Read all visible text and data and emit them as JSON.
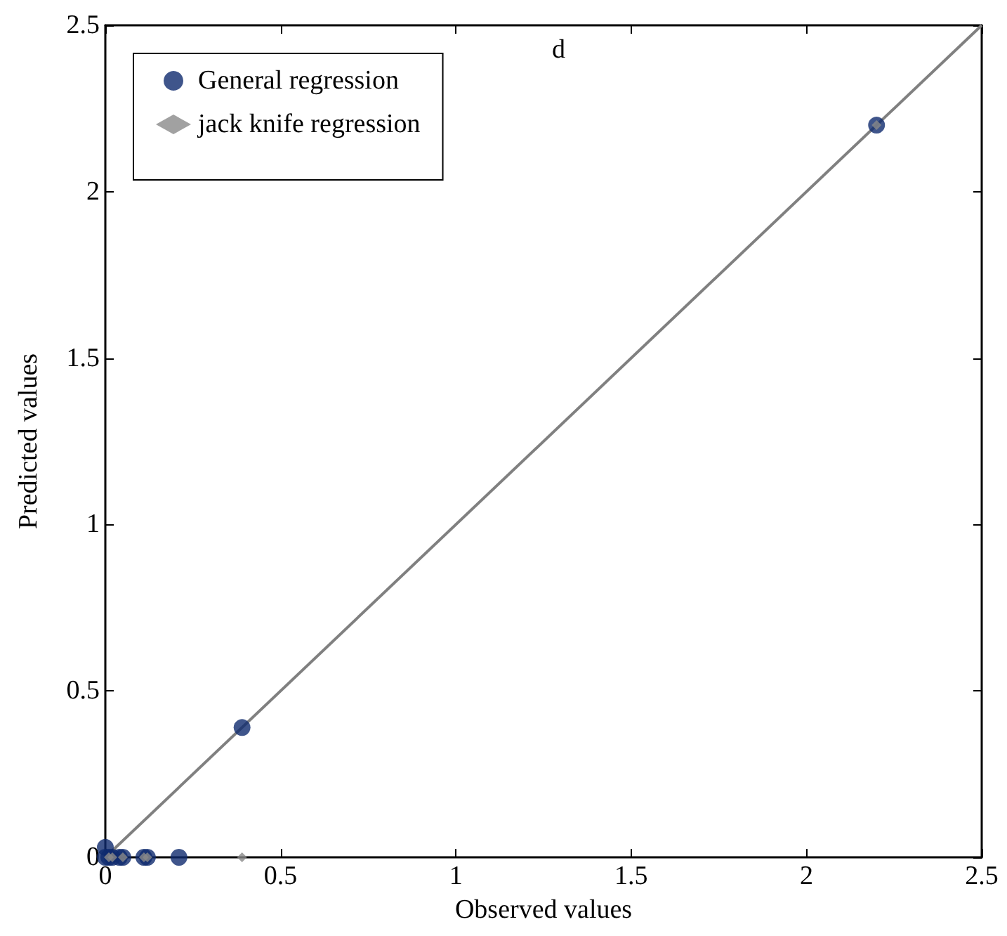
{
  "chart_data": {
    "type": "scatter",
    "xlabel": "Observed values",
    "ylabel": "Predicted values",
    "annotations": [
      "d"
    ],
    "xlim": [
      0,
      2.5
    ],
    "ylim": [
      0,
      2.5
    ],
    "xticks": [
      0,
      0.5,
      1,
      1.5,
      2,
      2.5
    ],
    "yticks": [
      0,
      0.5,
      1,
      1.5,
      2,
      2.5
    ],
    "grid": false,
    "legend": "top left",
    "series": [
      {
        "name": "General regression",
        "color": "#0f2a6e",
        "marker": "circle",
        "x": [
          0,
          0,
          0.01,
          0.02,
          0.04,
          0.05,
          0.11,
          0.12,
          0.21,
          0.39,
          2.2
        ],
        "values": [
          0.03,
          0,
          0,
          0,
          0,
          0,
          0,
          0,
          0,
          0.39,
          2.2
        ]
      },
      {
        "name": "jack knife regression",
        "color": "#8a8a8a",
        "marker": "diamond",
        "x": [
          0.01,
          0.02,
          0.05,
          0.11,
          0.12,
          0.39,
          2.2
        ],
        "values": [
          0,
          0,
          0,
          0,
          0,
          0,
          2.2
        ]
      },
      {
        "type": "line",
        "color": "#808080",
        "marker": "none",
        "line_style": "solid",
        "x": [
          0,
          2.5
        ],
        "values": [
          0,
          2.5
        ]
      }
    ]
  }
}
